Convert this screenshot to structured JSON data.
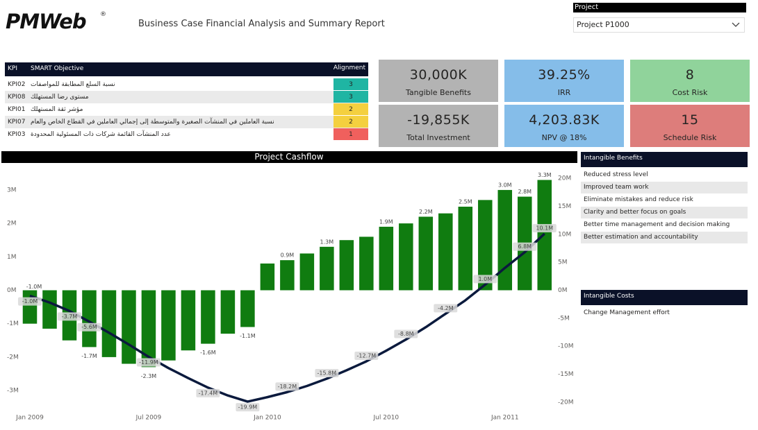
{
  "header": {
    "logo": "PMWeb",
    "logo_mark": "®",
    "title": "Business Case Financial Analysis and Summary Report"
  },
  "project_filter": {
    "label": "Project",
    "selected": "Project P1000"
  },
  "kpi_table": {
    "columns": [
      "KPI",
      "SMART Objective",
      "Alignment"
    ],
    "rows": [
      {
        "kpi": "KPI02",
        "objective": "نسبة السلع المطابقة للمواصفات",
        "alignment": "3",
        "color": "#1fb5a3"
      },
      {
        "kpi": "KPI08",
        "objective": "مستوى رضا المستهلك",
        "alignment": "3",
        "color": "#1fb5a3"
      },
      {
        "kpi": "KPI01",
        "objective": "مؤشر ثقة المستهلك",
        "alignment": "2",
        "color": "#f4d03f"
      },
      {
        "kpi": "KPI07",
        "objective": "نسبة العاملين في المنشآت الصغيرة والمتوسطة إلى إجمالي العاملين في القطاع الخاص والعام",
        "alignment": "2",
        "color": "#f4d03f"
      },
      {
        "kpi": "KPI03",
        "objective": "عدد المنشآت القائمة شركات ذات المسئولية المحدودة",
        "alignment": "1",
        "color": "#f0605d"
      }
    ]
  },
  "cards": [
    {
      "value": "30,000K",
      "label": "Tangible Benefits",
      "color": "#b3b3b3"
    },
    {
      "value": "39.25%",
      "label": "IRR",
      "color": "#85bde9"
    },
    {
      "value": "8",
      "label": "Cost Risk",
      "color": "#90d39b"
    },
    {
      "value": "-19,855K",
      "label": "Total Investment",
      "color": "#b3b3b3"
    },
    {
      "value": "4,203.83K",
      "label": "NPV @ 18%",
      "color": "#85bde9"
    },
    {
      "value": "15",
      "label": "Schedule Risk",
      "color": "#dd7d7b"
    }
  ],
  "intangible_benefits": {
    "title": "Intangible Benefits",
    "items": [
      "Reduced stress level",
      "Improved team work",
      "Eliminate mistakes and reduce risk",
      "Clarity and better focus on goals",
      "Better time management and decision making",
      "Better estimation and accountability"
    ]
  },
  "intangible_costs": {
    "title": "Intangible Costs",
    "items": [
      "Change Management effort"
    ]
  },
  "chart_data": {
    "type": "combo",
    "title": "Project Cashflow",
    "categories": [
      "Jan 2009",
      null,
      null,
      null,
      null,
      null,
      "Jul 2009",
      null,
      null,
      null,
      null,
      null,
      "Jan 2010",
      null,
      null,
      null,
      null,
      null,
      "Jul 2010",
      null,
      null,
      null,
      null,
      null,
      "Jan 2011",
      null,
      null
    ],
    "series": [
      {
        "type": "bar",
        "color": "#107c10",
        "values": [
          -1.0,
          -1.15,
          -1.5,
          -1.7,
          -2.0,
          -2.2,
          -2.3,
          -2.1,
          -1.8,
          -1.6,
          -1.3,
          -1.1,
          0.8,
          0.9,
          1.1,
          1.3,
          1.5,
          1.6,
          1.9,
          2.0,
          2.2,
          2.3,
          2.5,
          2.7,
          3.0,
          2.8,
          3.3
        ],
        "value_labels": [
          "-1.0M",
          null,
          null,
          "-1.7M",
          null,
          null,
          "-2.3M",
          null,
          null,
          "-1.6M",
          null,
          "-1.1M",
          null,
          "0.9M",
          null,
          "1.3M",
          null,
          null,
          "1.9M",
          null,
          "2.2M",
          null,
          "2.5M",
          null,
          "3.0M",
          "2.8M",
          "3.3M"
        ]
      },
      {
        "type": "line",
        "axis": "y2",
        "color": "#0b1a3d",
        "values": [
          -1.0,
          -2.2,
          -3.7,
          -5.6,
          -7.6,
          -9.7,
          -11.9,
          -13.9,
          -15.7,
          -17.4,
          -18.8,
          -19.9,
          -19.1,
          -18.2,
          -17.1,
          -15.8,
          -14.3,
          -12.7,
          -10.8,
          -8.8,
          -6.6,
          -4.2,
          -1.8,
          1.0,
          4.0,
          6.8,
          10.1
        ],
        "value_labels": [
          "-1.0M",
          null,
          "-3.7M",
          "-5.6M",
          null,
          null,
          "-11.9M",
          null,
          null,
          "-17.4M",
          null,
          "-19.9M",
          null,
          "-18.2M",
          null,
          "-15.8M",
          null,
          "-12.7M",
          null,
          "-8.8M",
          null,
          "-4.2M",
          null,
          "1.0M",
          null,
          "6.8M",
          "10.1M"
        ]
      }
    ],
    "ylim": [
      -3.6,
      3.6
    ],
    "yticks": [
      {
        "value": -3,
        "label": "-3M"
      },
      {
        "value": -2,
        "label": "-2M"
      },
      {
        "value": -1,
        "label": "-1M"
      },
      {
        "value": 0,
        "label": "0M"
      },
      {
        "value": 1,
        "label": "1M"
      },
      {
        "value": 2,
        "label": "2M"
      },
      {
        "value": 3,
        "label": "3M"
      }
    ],
    "y2lim": [
      -21.5,
      21.5
    ],
    "y2ticks": [
      {
        "value": -20,
        "label": "-20M"
      },
      {
        "value": -15,
        "label": "-15M"
      },
      {
        "value": -10,
        "label": "-10M"
      },
      {
        "value": -5,
        "label": "-5M"
      },
      {
        "value": 0,
        "label": "0M"
      },
      {
        "value": 5,
        "label": "5M"
      },
      {
        "value": 10,
        "label": "10M"
      },
      {
        "value": 15,
        "label": "15M"
      },
      {
        "value": 20,
        "label": "20M"
      }
    ]
  }
}
